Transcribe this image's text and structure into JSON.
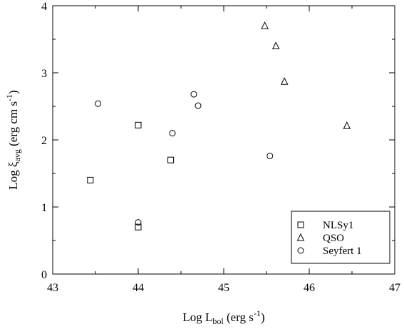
{
  "chart_data": {
    "type": "scatter",
    "title": "",
    "xlabel": {
      "main": "Log L",
      "sub": "bol",
      "unit": " (erg s",
      "sup": "-1",
      "close": ")"
    },
    "ylabel": {
      "main": "Log ξ",
      "sub": "avg",
      "unit": " (erg cm s",
      "sup": "-1",
      "close": ")"
    },
    "xlim": [
      43,
      47
    ],
    "ylim": [
      0,
      4
    ],
    "xticks": [
      "43",
      "44",
      "45",
      "46",
      "47"
    ],
    "yticks": [
      "0",
      "1",
      "2",
      "3",
      "4"
    ],
    "grid": false,
    "legend_position": "bottom-right",
    "series": [
      {
        "name": "NLSy1",
        "marker": "square",
        "points": [
          {
            "x": 43.44,
            "y": 1.4
          },
          {
            "x": 44.0,
            "y": 2.22
          },
          {
            "x": 44.38,
            "y": 1.7
          },
          {
            "x": 44.0,
            "y": 0.7
          }
        ]
      },
      {
        "name": "QSO",
        "marker": "triangle",
        "points": [
          {
            "x": 45.48,
            "y": 3.7
          },
          {
            "x": 45.61,
            "y": 3.4
          },
          {
            "x": 45.71,
            "y": 2.87
          },
          {
            "x": 46.44,
            "y": 2.21
          }
        ]
      },
      {
        "name": "Seyfert 1",
        "marker": "circle",
        "points": [
          {
            "x": 43.53,
            "y": 2.54
          },
          {
            "x": 44.65,
            "y": 2.68
          },
          {
            "x": 44.7,
            "y": 2.51
          },
          {
            "x": 44.4,
            "y": 2.1
          },
          {
            "x": 45.54,
            "y": 1.76
          },
          {
            "x": 44.0,
            "y": 0.77
          }
        ]
      }
    ]
  }
}
